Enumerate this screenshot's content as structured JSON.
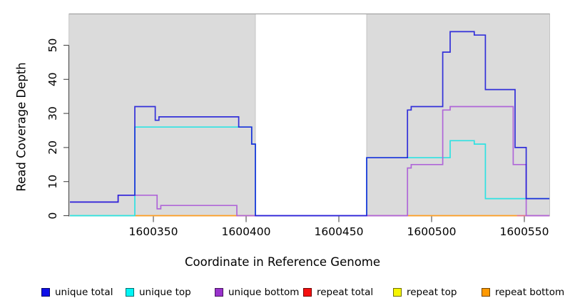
{
  "chart_data": {
    "type": "step-line",
    "title": "",
    "xlabel": "Coordinate in Reference Genome",
    "ylabel": "Read Coverage Depth",
    "x_ticks": [
      "1600350",
      "1600400",
      "1600450",
      "1600500",
      "1600550"
    ],
    "y_ticks": [
      "0",
      "10",
      "20",
      "30",
      "40",
      "50"
    ],
    "x_range": [
      1600305,
      1600563.5
    ],
    "y_range": [
      0,
      59
    ],
    "grid": false,
    "legend_position": "bottom",
    "background_regions": [
      {
        "name": "covered-region-left",
        "from": 1600304.5,
        "to": 1600405,
        "color": "#dbdbdb"
      },
      {
        "name": "covered-region-right",
        "from": 1600465,
        "to": 1600563.7,
        "color": "#dbdbdb"
      }
    ],
    "uncovered_gap": {
      "from": 1600405,
      "to": 1600465
    },
    "series": [
      {
        "name": "unique top",
        "color": "#2ee2e2",
        "opacity": 1,
        "points": [
          [
            1600305,
            0
          ],
          [
            1600340,
            26
          ],
          [
            1600403,
            21
          ],
          [
            1600405,
            0
          ],
          [
            1600465,
            17
          ],
          [
            1600510,
            22
          ],
          [
            1600523,
            21
          ],
          [
            1600529,
            5
          ]
        ]
      },
      {
        "name": "unique bottom",
        "color": "#af66d8",
        "opacity": 1,
        "points": [
          [
            1600305,
            4
          ],
          [
            1600331,
            6
          ],
          [
            1600352,
            2
          ],
          [
            1600354,
            3
          ],
          [
            1600395,
            0
          ],
          [
            1600487,
            14
          ],
          [
            1600489,
            15
          ],
          [
            1600506,
            31
          ],
          [
            1600510,
            32
          ],
          [
            1600544,
            15
          ],
          [
            1600551,
            0
          ]
        ]
      },
      {
        "name": "unique total",
        "color": "#1a17d8",
        "opacity": 0.88,
        "points": [
          [
            1600305,
            4
          ],
          [
            1600331,
            6
          ],
          [
            1600340,
            32
          ],
          [
            1600351,
            28
          ],
          [
            1600353,
            29
          ],
          [
            1600396,
            26
          ],
          [
            1600403,
            21
          ],
          [
            1600405,
            0
          ],
          [
            1600465,
            17
          ],
          [
            1600487,
            31
          ],
          [
            1600489,
            32
          ],
          [
            1600506,
            48
          ],
          [
            1600510,
            54
          ],
          [
            1600523,
            53
          ],
          [
            1600529,
            37
          ],
          [
            1600545,
            20
          ],
          [
            1600551,
            5
          ]
        ]
      }
    ],
    "baseline_segments": [
      {
        "series": "unique top + repeat top overlap",
        "color": "#a6d795",
        "value": 0,
        "from": 1600305,
        "to": 1600340
      },
      {
        "series": "repeat bottom",
        "color": "#ff9d21",
        "value": 0,
        "from": 1600340,
        "to": 1600405
      },
      {
        "series": "repeat total",
        "color": "#e66f88",
        "value": 0,
        "from": 1600465,
        "to": 1600487
      },
      {
        "series": "repeat bottom",
        "color": "#ff9d21",
        "value": 0,
        "from": 1600487,
        "to": 1600546
      },
      {
        "series": "repeat total",
        "color": "#e66f88",
        "value": 0,
        "from": 1600546,
        "to": 1600563.5
      }
    ],
    "legend": [
      {
        "label": "unique total",
        "color": "#0f0fe8"
      },
      {
        "label": "unique top",
        "color": "#00f5f5"
      },
      {
        "label": "unique bottom",
        "color": "#9932cc"
      },
      {
        "label": "repeat total",
        "color": "#f50f0f"
      },
      {
        "label": "repeat top",
        "color": "#f5f500"
      },
      {
        "label": "repeat bottom",
        "color": "#ff9900"
      }
    ],
    "repeat_series_note": "repeat total, repeat top and repeat bottom are 0 across all covered regions"
  }
}
